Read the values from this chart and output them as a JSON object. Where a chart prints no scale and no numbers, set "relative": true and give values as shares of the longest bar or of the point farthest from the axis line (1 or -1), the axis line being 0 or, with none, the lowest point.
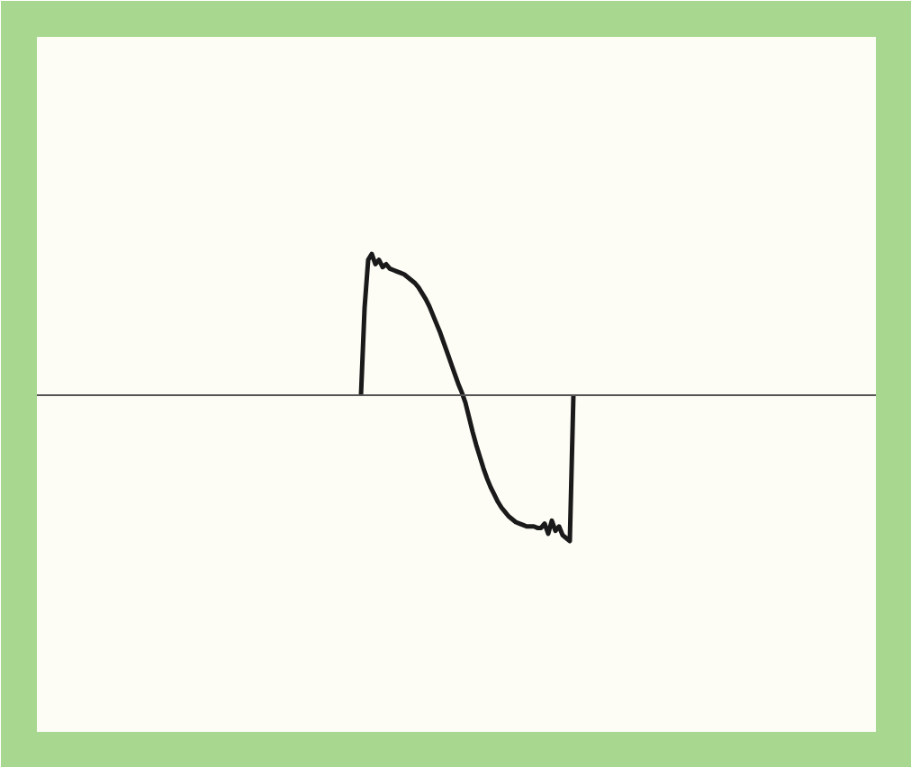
{
  "chart_data": {
    "type": "line",
    "relative": true,
    "categories": [
      null,
      null,
      null,
      null,
      null,
      null,
      null,
      null,
      null,
      null,
      null,
      null,
      null,
      null,
      null,
      null,
      null,
      null,
      null,
      null,
      null,
      null,
      null,
      null,
      null,
      null,
      null,
      null,
      null,
      null,
      null,
      null,
      null,
      null,
      null,
      null,
      null,
      null,
      null,
      null,
      null,
      null,
      null,
      null,
      null,
      null,
      null,
      null,
      null,
      null,
      null,
      null,
      null,
      null,
      null,
      null,
      null,
      null,
      null,
      null
    ],
    "series": [
      {
        "color": "#1a1a1a",
        "values": [
          0,
          0.6,
          0.93,
          0.97,
          0.9,
          0.93,
          0.88,
          0.9,
          0.87,
          0.86,
          0.85,
          0.84,
          0.83,
          0.81,
          0.79,
          0.77,
          0.74,
          0.7,
          0.66,
          0.61,
          0.55,
          0.49,
          0.43,
          0.36,
          0.29,
          0.22,
          0.15,
          0.08,
          0.02,
          -0.05,
          -0.15,
          -0.25,
          -0.34,
          -0.42,
          -0.5,
          -0.57,
          -0.63,
          -0.68,
          -0.73,
          -0.77,
          -0.8,
          -0.83,
          -0.85,
          -0.87,
          -0.88,
          -0.89,
          -0.9,
          -0.9,
          -0.9,
          -0.91,
          -0.91,
          -0.88,
          -0.95,
          -0.86,
          -0.93,
          -0.9,
          -0.96,
          -0.98,
          -1,
          0
        ]
      }
    ]
  }
}
